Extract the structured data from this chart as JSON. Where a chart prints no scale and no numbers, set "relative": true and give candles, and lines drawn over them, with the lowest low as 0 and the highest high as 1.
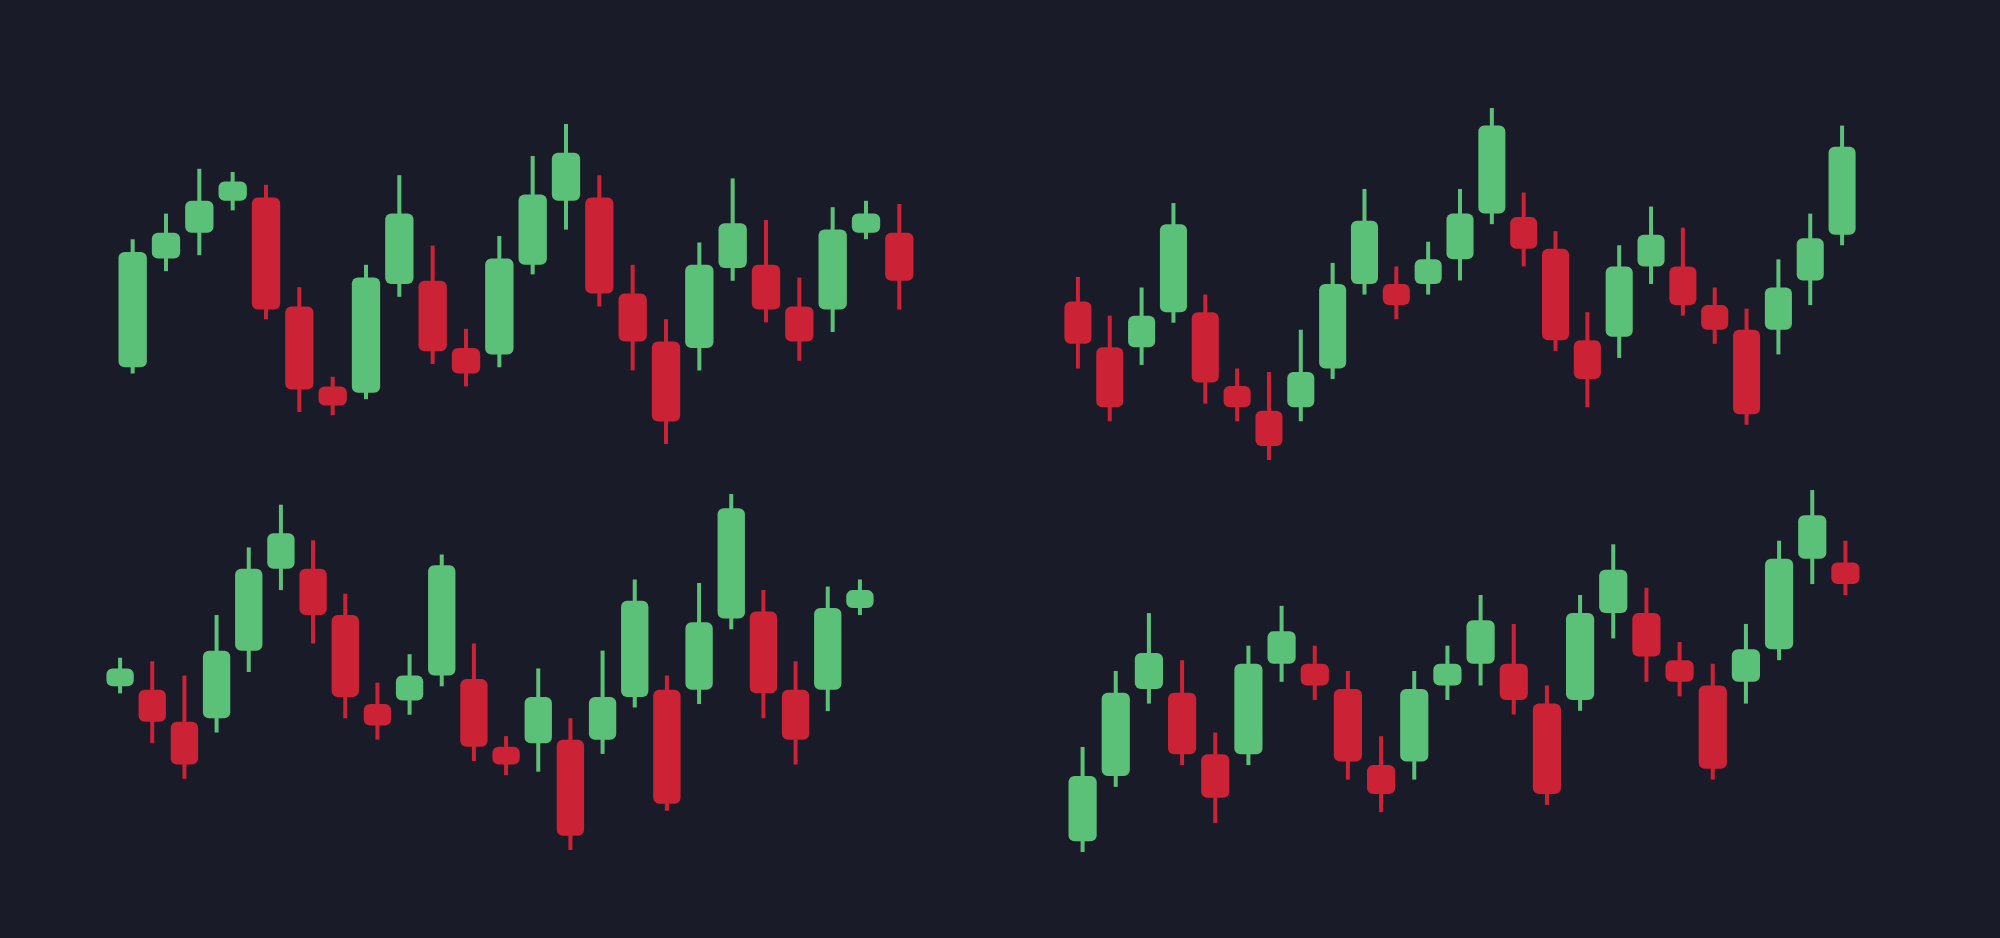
{
  "chart_data": [
    {
      "type": "candlestick",
      "relative": true,
      "categories": [
        null,
        null,
        null,
        null,
        null,
        null,
        null,
        null,
        null,
        null,
        null,
        null,
        null,
        null,
        null,
        null,
        null,
        null,
        null,
        null,
        null,
        null,
        null,
        null
      ],
      "ohlc": [
        [
          0.24,
          0.64,
          0.22,
          0.6
        ],
        [
          0.58,
          0.72,
          0.54,
          0.66
        ],
        [
          0.66,
          0.86,
          0.59,
          0.76
        ],
        [
          0.76,
          0.85,
          0.73,
          0.82
        ],
        [
          0.77,
          0.81,
          0.39,
          0.42
        ],
        [
          0.43,
          0.49,
          0.1,
          0.17
        ],
        [
          0.18,
          0.21,
          0.09,
          0.12
        ],
        [
          0.16,
          0.56,
          0.14,
          0.52
        ],
        [
          0.5,
          0.84,
          0.46,
          0.72
        ],
        [
          0.51,
          0.62,
          0.25,
          0.29
        ],
        [
          0.3,
          0.36,
          0.18,
          0.22
        ],
        [
          0.28,
          0.65,
          0.24,
          0.58
        ],
        [
          0.56,
          0.9,
          0.53,
          0.78
        ],
        [
          0.76,
          1.0,
          0.67,
          0.91
        ],
        [
          0.77,
          0.84,
          0.43,
          0.47
        ],
        [
          0.47,
          0.56,
          0.23,
          0.32
        ],
        [
          0.32,
          0.39,
          0.0,
          0.07
        ],
        [
          0.3,
          0.63,
          0.23,
          0.56
        ],
        [
          0.55,
          0.83,
          0.51,
          0.69
        ],
        [
          0.56,
          0.7,
          0.38,
          0.42
        ],
        [
          0.43,
          0.52,
          0.26,
          0.32
        ],
        [
          0.42,
          0.74,
          0.35,
          0.67
        ],
        [
          0.66,
          0.76,
          0.64,
          0.72
        ],
        [
          0.66,
          0.75,
          0.42,
          0.51
        ]
      ]
    },
    {
      "type": "candlestick",
      "relative": true,
      "categories": [
        null,
        null,
        null,
        null,
        null,
        null,
        null,
        null,
        null,
        null,
        null,
        null,
        null,
        null,
        null,
        null,
        null,
        null,
        null,
        null,
        null,
        null,
        null,
        null,
        null
      ],
      "ohlc": [
        [
          0.45,
          0.52,
          0.26,
          0.33
        ],
        [
          0.32,
          0.41,
          0.11,
          0.15
        ],
        [
          0.32,
          0.49,
          0.27,
          0.41
        ],
        [
          0.42,
          0.73,
          0.39,
          0.67
        ],
        [
          0.42,
          0.47,
          0.16,
          0.22
        ],
        [
          0.21,
          0.26,
          0.11,
          0.15
        ],
        [
          0.14,
          0.25,
          0.0,
          0.04
        ],
        [
          0.15,
          0.37,
          0.11,
          0.25
        ],
        [
          0.26,
          0.56,
          0.23,
          0.5
        ],
        [
          0.5,
          0.77,
          0.47,
          0.68
        ],
        [
          0.5,
          0.55,
          0.4,
          0.44
        ],
        [
          0.5,
          0.62,
          0.47,
          0.57
        ],
        [
          0.57,
          0.77,
          0.51,
          0.7
        ],
        [
          0.7,
          1.0,
          0.67,
          0.95
        ],
        [
          0.69,
          0.76,
          0.55,
          0.6
        ],
        [
          0.6,
          0.65,
          0.31,
          0.34
        ],
        [
          0.34,
          0.42,
          0.15,
          0.23
        ],
        [
          0.35,
          0.61,
          0.29,
          0.55
        ],
        [
          0.55,
          0.72,
          0.5,
          0.64
        ],
        [
          0.55,
          0.66,
          0.41,
          0.44
        ],
        [
          0.44,
          0.49,
          0.33,
          0.37
        ],
        [
          0.37,
          0.43,
          0.1,
          0.13
        ],
        [
          0.37,
          0.57,
          0.3,
          0.49
        ],
        [
          0.51,
          0.7,
          0.44,
          0.63
        ],
        [
          0.64,
          0.95,
          0.61,
          0.89
        ]
      ]
    },
    {
      "type": "candlestick",
      "relative": true,
      "categories": [
        null,
        null,
        null,
        null,
        null,
        null,
        null,
        null,
        null,
        null,
        null,
        null,
        null,
        null,
        null,
        null,
        null,
        null,
        null,
        null,
        null,
        null,
        null,
        null
      ],
      "ohlc": [
        [
          0.46,
          0.54,
          0.44,
          0.51
        ],
        [
          0.45,
          0.53,
          0.3,
          0.36
        ],
        [
          0.36,
          0.49,
          0.2,
          0.24
        ],
        [
          0.37,
          0.66,
          0.33,
          0.56
        ],
        [
          0.56,
          0.85,
          0.5,
          0.79
        ],
        [
          0.79,
          0.97,
          0.73,
          0.89
        ],
        [
          0.79,
          0.87,
          0.58,
          0.66
        ],
        [
          0.66,
          0.72,
          0.37,
          0.43
        ],
        [
          0.41,
          0.47,
          0.31,
          0.35
        ],
        [
          0.42,
          0.55,
          0.38,
          0.49
        ],
        [
          0.49,
          0.83,
          0.46,
          0.8
        ],
        [
          0.48,
          0.58,
          0.25,
          0.29
        ],
        [
          0.29,
          0.32,
          0.21,
          0.24
        ],
        [
          0.3,
          0.51,
          0.22,
          0.43
        ],
        [
          0.31,
          0.37,
          0.0,
          0.04
        ],
        [
          0.31,
          0.56,
          0.27,
          0.43
        ],
        [
          0.43,
          0.76,
          0.4,
          0.7
        ],
        [
          0.45,
          0.49,
          0.11,
          0.13
        ],
        [
          0.45,
          0.75,
          0.41,
          0.64
        ],
        [
          0.65,
          1.0,
          0.62,
          0.96
        ],
        [
          0.67,
          0.73,
          0.37,
          0.44
        ],
        [
          0.45,
          0.53,
          0.24,
          0.31
        ],
        [
          0.45,
          0.74,
          0.39,
          0.68
        ],
        [
          0.68,
          0.76,
          0.66,
          0.73
        ]
      ]
    },
    {
      "type": "candlestick",
      "relative": true,
      "categories": [
        null,
        null,
        null,
        null,
        null,
        null,
        null,
        null,
        null,
        null,
        null,
        null,
        null,
        null,
        null,
        null,
        null,
        null,
        null,
        null,
        null,
        null,
        null,
        null
      ],
      "ohlc": [
        [
          0.03,
          0.29,
          0.0,
          0.21
        ],
        [
          0.21,
          0.5,
          0.18,
          0.44
        ],
        [
          0.45,
          0.66,
          0.41,
          0.55
        ],
        [
          0.44,
          0.53,
          0.24,
          0.27
        ],
        [
          0.27,
          0.33,
          0.08,
          0.15
        ],
        [
          0.27,
          0.57,
          0.24,
          0.52
        ],
        [
          0.52,
          0.68,
          0.47,
          0.61
        ],
        [
          0.52,
          0.57,
          0.42,
          0.46
        ],
        [
          0.45,
          0.5,
          0.2,
          0.25
        ],
        [
          0.24,
          0.32,
          0.11,
          0.16
        ],
        [
          0.25,
          0.5,
          0.2,
          0.45
        ],
        [
          0.46,
          0.57,
          0.42,
          0.52
        ],
        [
          0.52,
          0.71,
          0.46,
          0.64
        ],
        [
          0.52,
          0.63,
          0.38,
          0.42
        ],
        [
          0.41,
          0.46,
          0.13,
          0.16
        ],
        [
          0.42,
          0.71,
          0.39,
          0.66
        ],
        [
          0.66,
          0.85,
          0.59,
          0.78
        ],
        [
          0.66,
          0.73,
          0.47,
          0.54
        ],
        [
          0.53,
          0.58,
          0.43,
          0.47
        ],
        [
          0.46,
          0.52,
          0.2,
          0.23
        ],
        [
          0.47,
          0.63,
          0.41,
          0.56
        ],
        [
          0.56,
          0.86,
          0.53,
          0.81
        ],
        [
          0.81,
          1.0,
          0.74,
          0.93
        ],
        [
          0.8,
          0.86,
          0.71,
          0.74
        ]
      ]
    }
  ]
}
